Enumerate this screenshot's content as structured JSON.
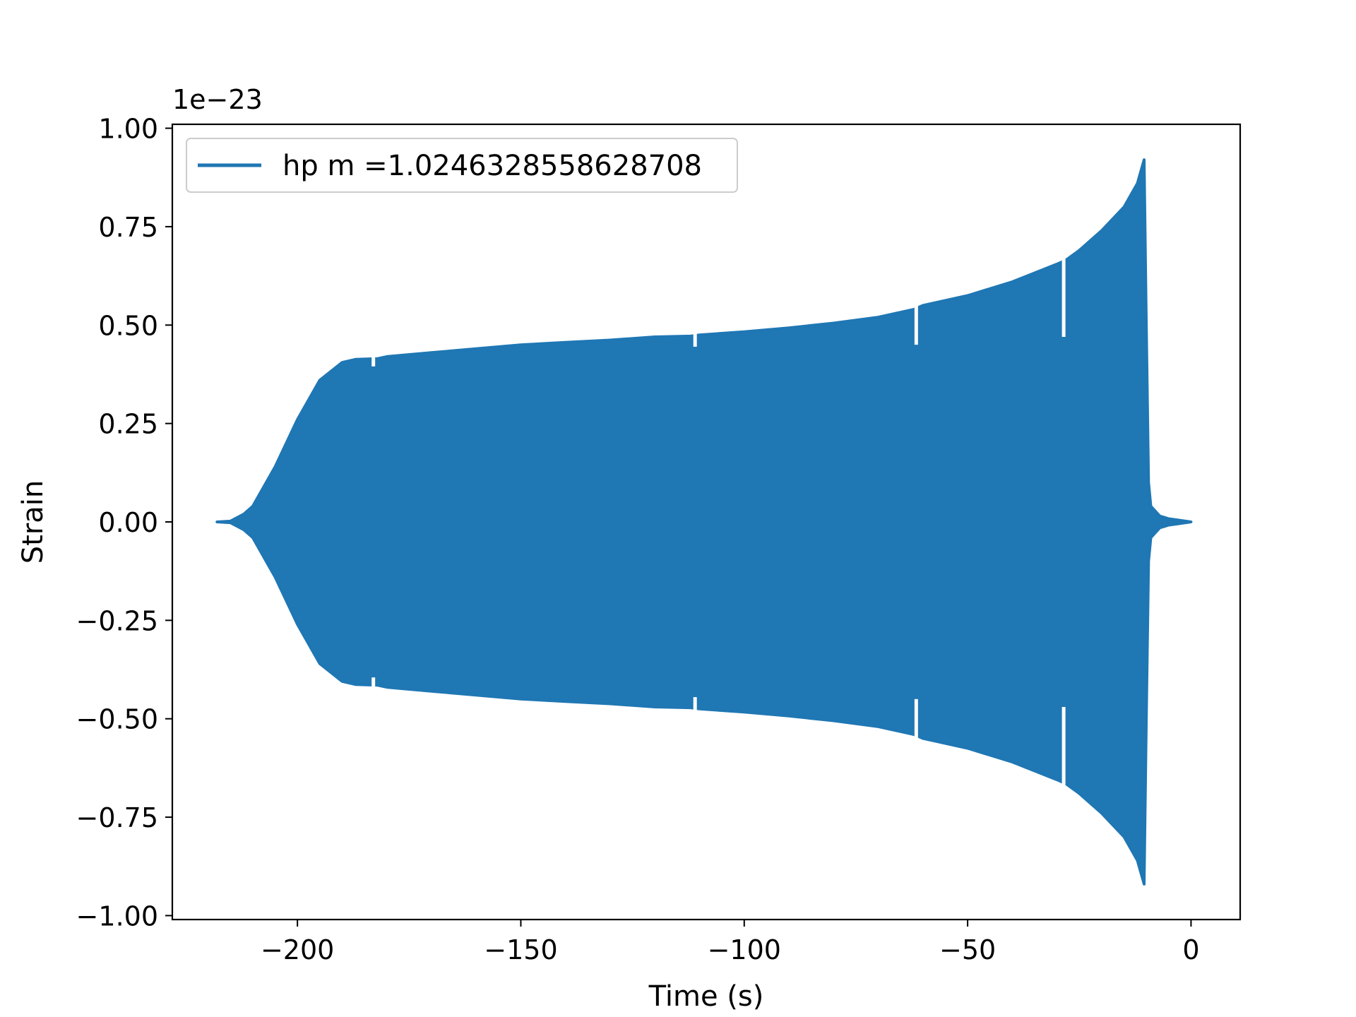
{
  "chart_data": {
    "type": "line",
    "title": "",
    "xlabel": "Time (s)",
    "ylabel": "Strain",
    "y_offset_label": "1e−23",
    "xlim": [
      -228,
      11
    ],
    "ylim": [
      -1.01,
      1.01
    ],
    "xticks": [
      -200,
      -150,
      -100,
      -50,
      0
    ],
    "xtick_labels": [
      "−200",
      "−150",
      "−100",
      "−50",
      "0"
    ],
    "yticks": [
      1.0,
      0.75,
      0.5,
      0.25,
      0.0,
      -0.25,
      -0.5,
      -0.75,
      -1.0
    ],
    "ytick_labels": [
      "1.00",
      "0.75",
      "0.50",
      "0.25",
      "0.00",
      "−0.25",
      "−0.50",
      "−0.75",
      "−1.00"
    ],
    "grid": false,
    "legend_position": "top-left",
    "series": [
      {
        "name": "hp m =1.0246328558628708",
        "color": "#1f77b4",
        "envelope_time": [
          -218,
          -215,
          -212,
          -210,
          -205,
          -200,
          -195,
          -190,
          -187,
          -182,
          -180,
          -170,
          -160,
          -150,
          -140,
          -130,
          -120,
          -112,
          -110,
          -100,
          -90,
          -80,
          -70,
          -62,
          -60,
          -50,
          -40,
          -30,
          -28,
          -25,
          -20,
          -15,
          -12,
          -11,
          -10.5,
          -10,
          -9.5,
          -9,
          -7,
          -5,
          -3,
          0
        ],
        "envelope_upper": [
          0.0,
          0.002,
          0.02,
          0.04,
          0.14,
          0.26,
          0.36,
          0.405,
          0.413,
          0.415,
          0.42,
          0.43,
          0.44,
          0.45,
          0.456,
          0.462,
          0.47,
          0.472,
          0.475,
          0.483,
          0.493,
          0.505,
          0.52,
          0.54,
          0.55,
          0.575,
          0.61,
          0.655,
          0.665,
          0.69,
          0.74,
          0.8,
          0.86,
          0.9,
          0.92,
          0.5,
          0.1,
          0.04,
          0.015,
          0.008,
          0.005,
          0.0
        ],
        "envelope_lower": [
          0.0,
          -0.002,
          -0.02,
          -0.04,
          -0.14,
          -0.26,
          -0.36,
          -0.405,
          -0.413,
          -0.415,
          -0.42,
          -0.43,
          -0.44,
          -0.45,
          -0.456,
          -0.462,
          -0.47,
          -0.472,
          -0.475,
          -0.483,
          -0.493,
          -0.505,
          -0.52,
          -0.54,
          -0.55,
          -0.575,
          -0.61,
          -0.655,
          -0.665,
          -0.69,
          -0.74,
          -0.8,
          -0.86,
          -0.9,
          -0.92,
          -0.5,
          -0.1,
          -0.04,
          -0.015,
          -0.008,
          -0.005,
          0.0
        ],
        "dips": [
          {
            "t": -183,
            "upper": 0.395,
            "lower": -0.395
          },
          {
            "t": -111,
            "upper": 0.445,
            "lower": -0.445
          },
          {
            "t": -61.5,
            "upper": 0.45,
            "lower": -0.45
          },
          {
            "t": -28.5,
            "upper": 0.47,
            "lower": -0.47
          }
        ]
      }
    ]
  }
}
